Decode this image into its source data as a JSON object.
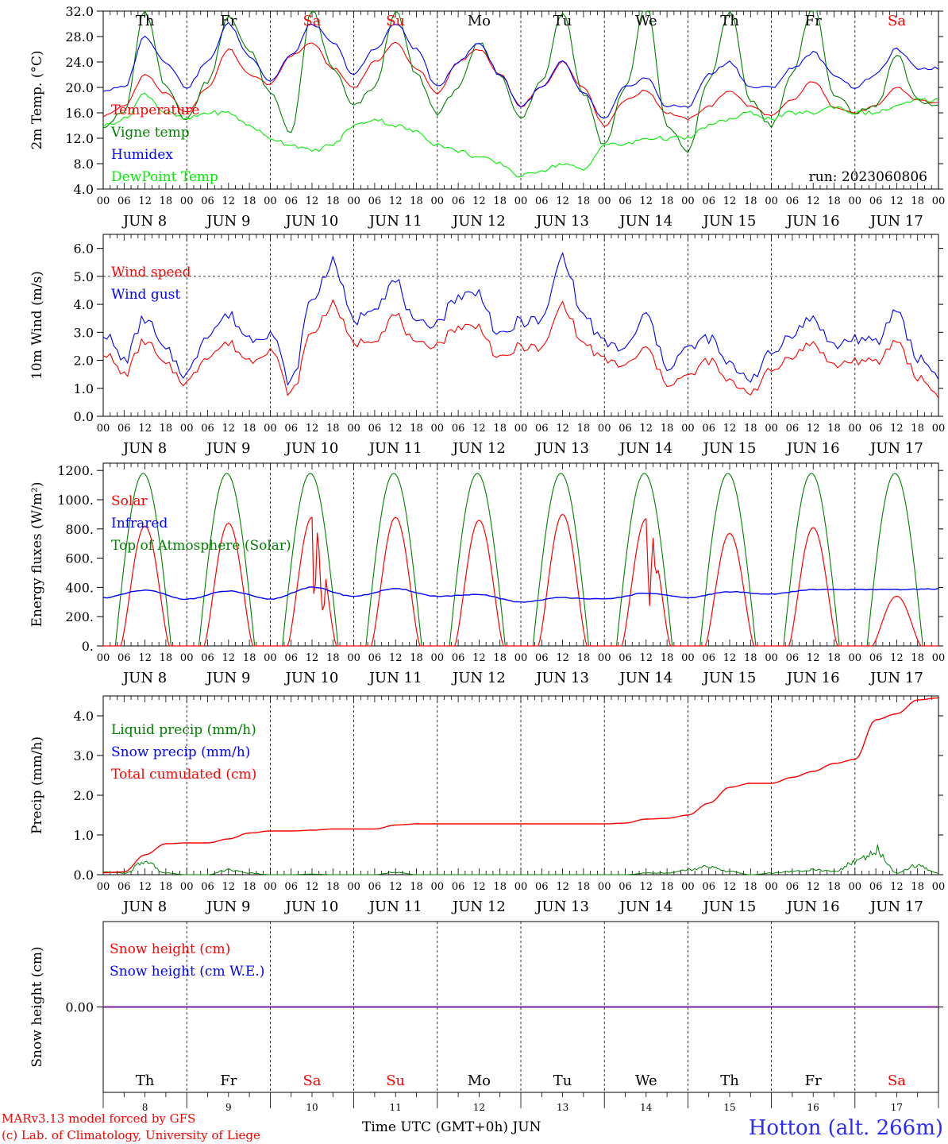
{
  "chart_data": [
    {
      "type": "line",
      "ylabel": "2m Temp. (°C)",
      "ylim": [
        4,
        32
      ],
      "yticks": [
        "32.0",
        "28.0",
        "24.0",
        "20.0",
        "16.0",
        "12.0",
        "8.0",
        "4.0"
      ],
      "grid": "vertical dashed day separators",
      "series": [
        {
          "name": "Temperature",
          "color": "#ff0000",
          "x": [
            0,
            6,
            12,
            18,
            24,
            30,
            36,
            42,
            48,
            54,
            60,
            66,
            72,
            78,
            84,
            90,
            96,
            102,
            108,
            114,
            120,
            126,
            132,
            138,
            144,
            150,
            156,
            162,
            168,
            174,
            180,
            186,
            192,
            198,
            204,
            210,
            216,
            222,
            228,
            234,
            240
          ],
          "values": [
            15.5,
            17,
            22,
            19,
            16,
            20,
            26,
            22,
            20.5,
            25,
            27,
            23,
            20,
            24,
            27,
            23,
            19,
            24,
            26,
            22,
            17,
            20,
            24,
            20,
            14,
            18,
            19.5,
            16,
            15,
            17,
            19.5,
            17,
            15.5,
            18,
            21,
            17,
            16,
            17,
            20,
            18,
            17.5
          ]
        },
        {
          "name": "Vigne temp",
          "color": "#008000",
          "x": [
            0,
            6,
            12,
            18,
            24,
            30,
            36,
            42,
            48,
            54,
            60,
            66,
            72,
            78,
            84,
            90,
            96,
            102,
            108,
            114,
            120,
            126,
            132,
            138,
            144,
            150,
            156,
            162,
            168,
            174,
            180,
            186,
            192,
            198,
            204,
            210,
            216,
            222,
            228,
            234,
            240
          ],
          "values": [
            14,
            16,
            32,
            20,
            15,
            21,
            31,
            26,
            19,
            13,
            32,
            23,
            17,
            20,
            32,
            22,
            16,
            20,
            27,
            22,
            15,
            21,
            32,
            19,
            11,
            20,
            33,
            14,
            10,
            21,
            32,
            18,
            14,
            22,
            33,
            19,
            16,
            17,
            25,
            18,
            17
          ]
        },
        {
          "name": "Humidex",
          "color": "#0000ff",
          "x": [
            0,
            6,
            12,
            18,
            24,
            30,
            36,
            42,
            48,
            54,
            60,
            66,
            72,
            78,
            84,
            90,
            96,
            102,
            108,
            114,
            120,
            126,
            132,
            138,
            144,
            150,
            156,
            162,
            168,
            174,
            180,
            186,
            192,
            198,
            204,
            210,
            216,
            222,
            228,
            234,
            240
          ],
          "values": [
            19.5,
            20,
            28,
            24,
            20,
            24,
            30,
            25,
            21,
            25,
            30,
            27,
            22,
            26,
            30,
            26,
            20,
            24,
            27,
            22,
            17,
            20,
            24,
            19,
            15,
            20,
            21.5,
            17,
            17,
            22,
            24,
            20,
            20,
            23,
            25.5,
            22,
            20,
            22,
            26,
            23,
            23
          ]
        },
        {
          "name": "DewPoint Temp",
          "color": "#00ee00",
          "x": [
            0,
            6,
            12,
            18,
            24,
            30,
            36,
            42,
            48,
            54,
            60,
            66,
            72,
            78,
            84,
            90,
            96,
            102,
            108,
            114,
            120,
            126,
            132,
            138,
            144,
            150,
            156,
            162,
            168,
            174,
            180,
            186,
            192,
            198,
            204,
            210,
            216,
            222,
            228,
            234,
            240
          ],
          "values": [
            14,
            15,
            19,
            16,
            15,
            16,
            16,
            14,
            12,
            11,
            10,
            11,
            14,
            15,
            14,
            13,
            11,
            10,
            9,
            8,
            6,
            7,
            8,
            7,
            11,
            11,
            12,
            12,
            12,
            14,
            15,
            16,
            15,
            16,
            16,
            17,
            16,
            16,
            17,
            18,
            18
          ]
        }
      ]
    },
    {
      "type": "line",
      "ylabel": "10m Wind (m/s)",
      "ylim": [
        0,
        6.5
      ],
      "yticks": [
        "6.0",
        "5.0",
        "4.0",
        "3.0",
        "2.0",
        "1.0",
        "0.0"
      ],
      "series": [
        {
          "name": "Wind speed",
          "color": "#ff0000",
          "x": [
            0,
            6,
            12,
            18,
            24,
            30,
            36,
            42,
            48,
            54,
            60,
            66,
            72,
            78,
            84,
            90,
            96,
            102,
            108,
            114,
            120,
            126,
            132,
            138,
            144,
            150,
            156,
            162,
            168,
            174,
            180,
            186,
            192,
            198,
            204,
            210,
            216,
            222,
            228,
            234,
            240
          ],
          "values": [
            2.3,
            1.5,
            2.7,
            1.8,
            1.2,
            2.2,
            2.6,
            2.0,
            2.4,
            0.8,
            3.0,
            4.0,
            2.6,
            2.8,
            3.6,
            2.5,
            2.6,
            3.2,
            3.2,
            2.0,
            2.5,
            2.4,
            4.0,
            2.6,
            2.0,
            1.8,
            2.4,
            1.2,
            1.4,
            2.0,
            1.2,
            0.9,
            1.6,
            2.2,
            2.6,
            1.8,
            2.0,
            1.9,
            2.7,
            1.4,
            0.8
          ]
        },
        {
          "name": "Wind gust",
          "color": "#0000ff",
          "x": [
            0,
            6,
            12,
            18,
            24,
            30,
            36,
            42,
            48,
            54,
            60,
            66,
            72,
            78,
            84,
            90,
            96,
            102,
            108,
            114,
            120,
            126,
            132,
            138,
            144,
            150,
            156,
            162,
            168,
            174,
            180,
            186,
            192,
            198,
            204,
            210,
            216,
            222,
            228,
            234,
            240
          ],
          "values": [
            3.0,
            2.0,
            3.5,
            2.3,
            1.5,
            3.0,
            3.6,
            2.8,
            3.0,
            1.2,
            4.2,
            5.5,
            3.4,
            4.0,
            4.8,
            3.2,
            3.4,
            4.3,
            4.4,
            2.8,
            3.4,
            3.4,
            5.7,
            3.6,
            2.6,
            2.4,
            3.6,
            1.8,
            2.4,
            2.8,
            1.8,
            1.4,
            2.2,
            3.0,
            3.5,
            2.5,
            2.8,
            2.6,
            3.8,
            2.1,
            1.5
          ]
        }
      ]
    },
    {
      "type": "line",
      "ylabel": "Energy fluxes (W/m²)",
      "ylim": [
        0,
        1250
      ],
      "yticks": [
        "1200.",
        "1000.",
        "800.",
        "600.",
        "400.",
        "200.",
        "0."
      ],
      "series": [
        {
          "name": "Solar",
          "color": "#ff0000",
          "peaks": [
            820,
            840,
            880,
            880,
            860,
            900,
            870,
            770,
            810,
            340
          ]
        },
        {
          "name": "Infrared",
          "color": "#0000ff",
          "x": [
            0,
            12,
            24,
            36,
            48,
            60,
            72,
            84,
            96,
            108,
            120,
            132,
            144,
            156,
            168,
            180,
            192,
            204,
            216,
            228,
            240
          ],
          "values": [
            330,
            380,
            320,
            375,
            320,
            400,
            340,
            390,
            340,
            350,
            300,
            330,
            320,
            360,
            330,
            370,
            355,
            385,
            385,
            385,
            390
          ]
        },
        {
          "name": "Top of Atmosphere (Solar)",
          "color": "#008000",
          "peak": 1180
        }
      ]
    },
    {
      "type": "line",
      "ylabel": "Precip (mm/h)",
      "ylim": [
        0,
        4.5
      ],
      "yticks": [
        "4.0",
        "3.0",
        "2.0",
        "1.0",
        "0.0"
      ],
      "series": [
        {
          "name": "Liquid precip (mm/h)",
          "color": "#008000",
          "x": [
            0,
            6,
            12,
            18,
            24,
            30,
            36,
            42,
            48,
            54,
            60,
            66,
            72,
            78,
            84,
            90,
            96,
            102,
            108,
            114,
            120,
            126,
            132,
            138,
            144,
            150,
            156,
            162,
            168,
            174,
            180,
            186,
            192,
            198,
            204,
            210,
            216,
            222,
            228,
            234,
            240
          ],
          "values": [
            0.08,
            0.05,
            0.4,
            0.05,
            0,
            0,
            0.15,
            0.05,
            0,
            0,
            0.02,
            0,
            0,
            0,
            0.08,
            0,
            0,
            0,
            0,
            0,
            0,
            0,
            0,
            0,
            0,
            0,
            0.05,
            0.05,
            0.15,
            0.25,
            0.1,
            0,
            0.05,
            0.1,
            0.15,
            0.1,
            0.4,
            0.8,
            0.05,
            0.3,
            0.05
          ]
        },
        {
          "name": "Snow precip (mm/h)",
          "color": "#0000ff"
        },
        {
          "name": "Total cumulated (cm)",
          "color": "#ff0000",
          "x": [
            0,
            6,
            12,
            18,
            24,
            30,
            36,
            42,
            48,
            54,
            60,
            66,
            72,
            78,
            84,
            90,
            96,
            102,
            108,
            114,
            120,
            126,
            132,
            138,
            144,
            150,
            156,
            162,
            168,
            174,
            180,
            186,
            192,
            198,
            204,
            210,
            216,
            222,
            228,
            234,
            240
          ],
          "values": [
            0.05,
            0.07,
            0.5,
            0.78,
            0.8,
            0.8,
            0.9,
            1.05,
            1.1,
            1.1,
            1.12,
            1.15,
            1.15,
            1.15,
            1.25,
            1.28,
            1.28,
            1.28,
            1.28,
            1.28,
            1.28,
            1.28,
            1.28,
            1.28,
            1.28,
            1.3,
            1.4,
            1.42,
            1.5,
            1.8,
            2.2,
            2.3,
            2.3,
            2.45,
            2.6,
            2.8,
            2.9,
            3.9,
            4.05,
            4.4,
            4.45
          ]
        }
      ]
    },
    {
      "type": "line",
      "ylabel": "Snow height (cm)",
      "yticks": [
        "0.00"
      ],
      "series": [
        {
          "name": "Snow height (cm)",
          "color": "#ff0000",
          "values": [
            0
          ]
        },
        {
          "name": "Snow height (cm W.E.)",
          "color": "#0000ff",
          "values": [
            0
          ]
        }
      ]
    }
  ],
  "xaxis": {
    "hour_labels": [
      "00",
      "06",
      "12",
      "18"
    ],
    "last_hour_label": "00",
    "dates": [
      "JUN  8",
      "JUN  9",
      "JUN 10",
      "JUN 11",
      "JUN 12",
      "JUN 13",
      "JUN 14",
      "JUN 15",
      "JUN 16",
      "JUN 17"
    ],
    "weekdays": [
      {
        "label": "Th",
        "color": "#000000"
      },
      {
        "label": "Fr",
        "color": "#000000"
      },
      {
        "label": "Sa",
        "color": "#ff0000"
      },
      {
        "label": "Su",
        "color": "#ff0000"
      },
      {
        "label": "Mo",
        "color": "#000000"
      },
      {
        "label": "Tu",
        "color": "#000000"
      },
      {
        "label": "We",
        "color": "#000000"
      },
      {
        "label": "Th",
        "color": "#000000"
      },
      {
        "label": "Fr",
        "color": "#000000"
      },
      {
        "label": "Sa",
        "color": "#ff0000"
      }
    ],
    "day_numbers": [
      "8",
      "9",
      "10",
      "11",
      "12",
      "13",
      "14",
      "15",
      "16",
      "17"
    ],
    "bottom_label": "Time UTC (GMT+0h)",
    "month": "JUN"
  },
  "run_label": "run: 2023060806",
  "footer": {
    "credit1": "MARv3.13 model forced by GFS",
    "credit2": "(c) Lab. of Climatology, University of Liege",
    "station": "Hotton (alt. 266m)"
  }
}
